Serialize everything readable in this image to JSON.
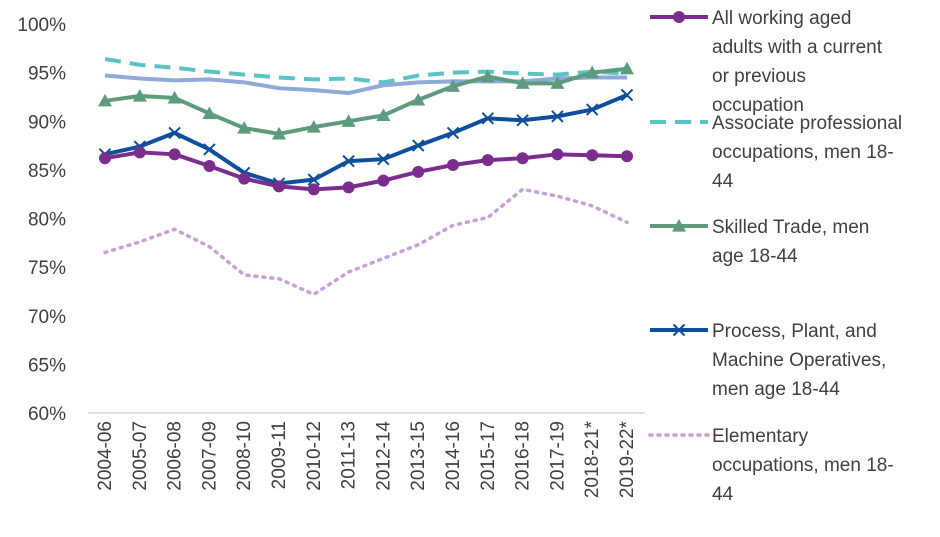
{
  "chart_data": {
    "type": "line",
    "categories": [
      "2004-06",
      "2005-07",
      "2006-08",
      "2007-09",
      "2008-10",
      "2009-11",
      "2010-12",
      "2011-13",
      "2012-14",
      "2013-15",
      "2014-16",
      "2015-17",
      "2016-18",
      "2017-19",
      "2018-21*",
      "2019-22*"
    ],
    "ylim": [
      60,
      100
    ],
    "ytick_values": [
      60,
      65,
      70,
      75,
      80,
      85,
      90,
      95,
      100
    ],
    "ytick_labels": [
      "60%",
      "65%",
      "70%",
      "75%",
      "80%",
      "85%",
      "90%",
      "95%",
      "100%"
    ],
    "grid": false,
    "legend_position": "right",
    "series": [
      {
        "label_lines": [
          "All working aged",
          "adults with a current",
          "or previous",
          "occupation"
        ],
        "color": "#7B2D8E",
        "style": "solid-circle",
        "values": [
          86.2,
          86.8,
          86.6,
          85.4,
          84.1,
          83.3,
          83.0,
          83.2,
          83.9,
          84.8,
          85.5,
          86.0,
          86.2,
          86.6,
          86.5,
          86.4
        ]
      },
      {
        "label_lines": [
          "Associate professional",
          "occupations, men 18-",
          "44"
        ],
        "color": "#5BC3C3",
        "style": "dashed",
        "values": [
          96.4,
          95.8,
          95.5,
          95.1,
          94.8,
          94.5,
          94.3,
          94.4,
          94.0,
          94.7,
          95.0,
          95.1,
          94.9,
          94.8,
          95.1,
          94.9
        ]
      },
      {
        "label_lines": [],
        "color": "#8FA9D8",
        "style": "solid-plain",
        "values": [
          94.7,
          94.4,
          94.2,
          94.3,
          94.0,
          93.4,
          93.2,
          92.9,
          93.7,
          94.0,
          94.1,
          94.1,
          94.1,
          94.4,
          94.5,
          94.5
        ]
      },
      {
        "label_lines": [
          "Skilled Trade, men",
          "age 18-44"
        ],
        "color": "#5E9B7E",
        "style": "solid-triangle",
        "values": [
          92.1,
          92.6,
          92.4,
          90.8,
          89.3,
          88.7,
          89.4,
          90.0,
          90.6,
          92.2,
          93.6,
          94.6,
          93.9,
          93.9,
          95.0,
          95.4
        ]
      },
      {
        "label_lines": [
          "Process, Plant, and",
          "Machine Operatives,",
          "men age 18-44"
        ],
        "color": "#0D4F9C",
        "style": "solid-x",
        "values": [
          86.6,
          87.4,
          88.8,
          87.1,
          84.7,
          83.6,
          84.0,
          85.9,
          86.1,
          87.5,
          88.8,
          90.3,
          90.1,
          90.5,
          91.2,
          92.7
        ]
      },
      {
        "label_lines": [
          "Elementary",
          "occupations, men 18-",
          "44"
        ],
        "color": "#C8A0D6",
        "style": "dotted",
        "values": [
          76.5,
          77.6,
          78.9,
          77.1,
          74.2,
          73.8,
          72.2,
          74.5,
          75.9,
          77.3,
          79.3,
          80.1,
          83.0,
          82.3,
          81.3,
          79.6
        ]
      }
    ]
  }
}
